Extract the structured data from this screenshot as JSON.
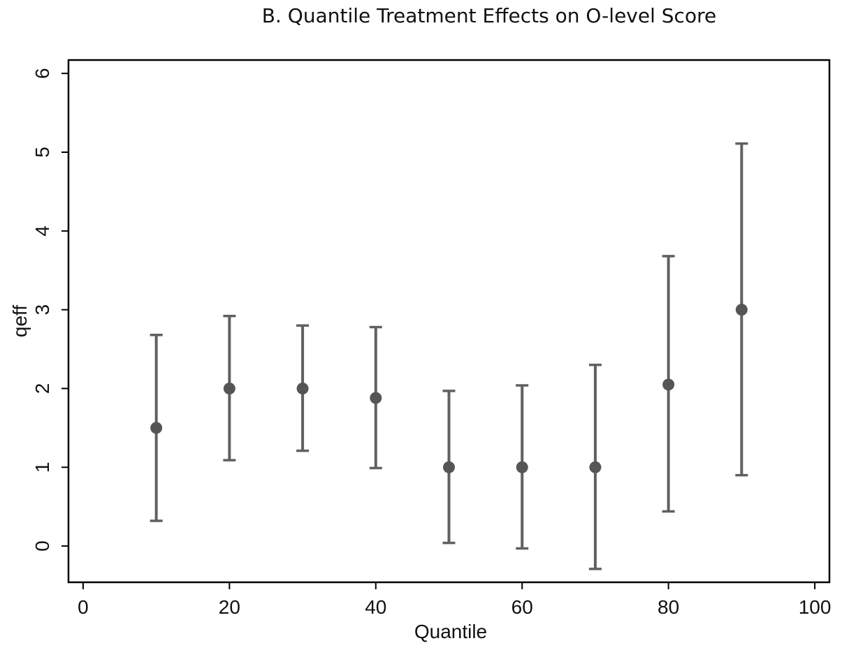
{
  "chart_data": {
    "type": "scatter",
    "title": "B. Quantile Treatment Effects on O-level Score",
    "xlabel": "Quantile",
    "ylabel": "qeff",
    "xlim": [
      -2,
      102
    ],
    "ylim": [
      -0.46,
      6.17
    ],
    "xticks": [
      0,
      20,
      40,
      60,
      80,
      100
    ],
    "yticks": [
      0,
      1,
      2,
      3,
      4,
      5,
      6
    ],
    "grid": false,
    "series": [
      {
        "points": [
          {
            "x": 10,
            "y": 1.5,
            "lo": 0.32,
            "hi": 2.68
          },
          {
            "x": 20,
            "y": 2.0,
            "lo": 1.09,
            "hi": 2.92
          },
          {
            "x": 30,
            "y": 2.0,
            "lo": 1.21,
            "hi": 2.8
          },
          {
            "x": 40,
            "y": 1.88,
            "lo": 0.99,
            "hi": 2.78
          },
          {
            "x": 50,
            "y": 1.0,
            "lo": 0.04,
            "hi": 1.97
          },
          {
            "x": 60,
            "y": 1.0,
            "lo": -0.03,
            "hi": 2.04
          },
          {
            "x": 70,
            "y": 1.0,
            "lo": -0.29,
            "hi": 2.3
          },
          {
            "x": 80,
            "y": 2.05,
            "lo": 0.44,
            "hi": 3.68
          },
          {
            "x": 90,
            "y": 3.0,
            "lo": 0.9,
            "hi": 5.11
          }
        ]
      }
    ],
    "colors": {
      "marker": "#555555",
      "errorbar": "#606060",
      "axis": "#000000"
    }
  }
}
